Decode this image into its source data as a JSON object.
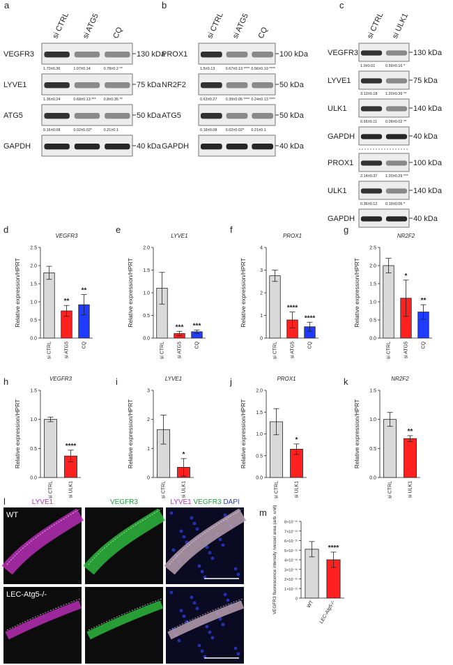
{
  "blots": [
    {
      "panel": "a",
      "lanes": [
        "si CTRL",
        "si ATG5",
        "CQ"
      ],
      "rows": [
        {
          "protein": "VEGFR3",
          "marker": "130 kDa",
          "quant": [
            "1.70±0.36",
            "1.07±0.14",
            "0.78±0.2 **"
          ]
        },
        {
          "protein": "LYVE1",
          "marker": "75 kDa",
          "quant": [
            "1.36±0.24",
            "0.68±0.13 ***",
            "0.8±0.35 **"
          ]
        },
        {
          "protein": "ATG5",
          "marker": "50 kDa",
          "quant": [
            "0.16±0.08",
            "0.02±0.02*",
            "0.21±0.1"
          ]
        },
        {
          "protein": "GAPDH",
          "marker": "40 kDa"
        }
      ]
    },
    {
      "panel": "b",
      "lanes": [
        "si CTRL",
        "si ATG5",
        "CQ"
      ],
      "rows": [
        {
          "protein": "PROX1",
          "marker": "100 kDa",
          "quant": [
            "1.5±0.13",
            "0.67±0.13 ****",
            "0.56±0.19 ****"
          ]
        },
        {
          "protein": "NR2F2",
          "marker": "50 kDa",
          "quant": [
            "0.63±0.27",
            "0.39±0.05 ****",
            "0.24±0.13 ****"
          ]
        },
        {
          "protein": "ATG5",
          "marker": "50 kDa",
          "quant": [
            "0.18±0.08",
            "0.02±0.02*",
            "0.21±0.1"
          ]
        },
        {
          "protein": "GAPDH",
          "marker": "40 kDa"
        }
      ]
    },
    {
      "panel": "c",
      "lanes": [
        "si CTRL",
        "si ULK1"
      ],
      "rows": [
        {
          "protein": "VEGFR3",
          "marker": "130 kDa",
          "quant": [
            "1.0±0.01",
            "0.59±0.16 *"
          ]
        },
        {
          "protein": "LYVE1",
          "marker": "75 kDa",
          "quant": [
            "3.13±0.18",
            "1.20±0.39 **"
          ]
        },
        {
          "protein": "ULK1",
          "marker": "140 kDa",
          "quant": [
            "0.65±0.11",
            "0.09±0.02 **"
          ]
        },
        {
          "protein": "GAPDH",
          "marker": "40 kDa"
        },
        {
          "protein": "PROX1",
          "marker": "100 kDa",
          "quant": [
            "2.14±0.37",
            "1.20±0.29 ***"
          ]
        },
        {
          "protein": "ULK1",
          "marker": "140 kDa",
          "quant": [
            "0.36±0.12",
            "0.19±0.06 *"
          ]
        },
        {
          "protein": "GAPDH",
          "marker": "40 kDa"
        }
      ]
    }
  ],
  "chart_data": [
    {
      "type": "bar",
      "panel": "d",
      "title": "VEGFR3",
      "y_label": "Relative expression/HPRT",
      "categories": [
        "si CTRL",
        "si ATG5",
        "CQ"
      ],
      "values": [
        1.8,
        0.75,
        0.92
      ],
      "errors": [
        0.18,
        0.15,
        0.28
      ],
      "colors": [
        "#d9d9d9",
        "#ff2020",
        "#1f3bff"
      ],
      "annotations": [
        null,
        "**",
        "**"
      ],
      "ylim": [
        0,
        2.5
      ],
      "yticks": [
        {
          "value": 0,
          "label": "0.0"
        },
        0.5,
        {
          "value": 1,
          "label": "1.0"
        },
        1.5,
        {
          "value": 2,
          "label": "2.0"
        },
        2.5
      ]
    },
    {
      "type": "bar",
      "panel": "e",
      "title": "LYVE1",
      "y_label": "Relative expression/HPRT",
      "categories": [
        "si CTRL",
        "si ATG5",
        "CQ"
      ],
      "values": [
        1.1,
        0.1,
        0.14
      ],
      "errors": [
        0.35,
        0.05,
        0.04
      ],
      "colors": [
        "#d9d9d9",
        "#ff2020",
        "#1f3bff"
      ],
      "annotations": [
        null,
        "***",
        "***"
      ],
      "ylim": [
        0,
        2
      ],
      "yticks": [
        {
          "value": 0,
          "label": "0.0"
        },
        0.5,
        {
          "value": 1,
          "label": "1.0"
        },
        1.5,
        {
          "value": 2,
          "label": "2.0"
        }
      ]
    },
    {
      "type": "bar",
      "panel": "f",
      "title": "PROX1",
      "y_label": "Relative expression/HPRT",
      "categories": [
        "si CTRL",
        "si ATG5",
        "CQ"
      ],
      "values": [
        2.75,
        0.8,
        0.5
      ],
      "errors": [
        0.25,
        0.35,
        0.2
      ],
      "colors": [
        "#d9d9d9",
        "#ff2020",
        "#1f3bff"
      ],
      "annotations": [
        null,
        "****",
        "****"
      ],
      "ylim": [
        0,
        4
      ],
      "yticks": [
        0,
        1,
        2,
        3,
        4
      ]
    },
    {
      "type": "bar",
      "panel": "g",
      "title": "NR2F2",
      "y_label": "Relative expression/HPRT",
      "categories": [
        "si CTRL",
        "si ATG5",
        "CQ"
      ],
      "values": [
        2.0,
        1.1,
        0.72
      ],
      "errors": [
        0.2,
        0.5,
        0.2
      ],
      "colors": [
        "#d9d9d9",
        "#ff2020",
        "#1f3bff"
      ],
      "annotations": [
        null,
        "*",
        "**"
      ],
      "ylim": [
        0,
        2.5
      ],
      "yticks": [
        {
          "value": 0,
          "label": "0.0"
        },
        0.5,
        {
          "value": 1,
          "label": "1.0"
        },
        1.5,
        {
          "value": 2,
          "label": "2.0"
        },
        2.5
      ]
    },
    {
      "type": "bar",
      "panel": "h",
      "title": "VEGFR3",
      "y_label": "Relative expression/HPRT",
      "categories": [
        "si CTRL",
        "si ULK1"
      ],
      "values": [
        1.0,
        0.37
      ],
      "errors": [
        0.04,
        0.1
      ],
      "colors": [
        "#d9d9d9",
        "#ff2020"
      ],
      "annotations": [
        null,
        "****"
      ],
      "ylim": [
        0,
        1.5
      ],
      "yticks": [
        {
          "value": 0,
          "label": "0.0"
        },
        0.5,
        {
          "value": 1,
          "label": "1.0"
        },
        1.5
      ]
    },
    {
      "type": "bar",
      "panel": "i",
      "title": "LYVE1",
      "y_label": "Relative expression/HPRT",
      "categories": [
        "si CTRL",
        "si ULK1"
      ],
      "values": [
        1.65,
        0.35
      ],
      "errors": [
        0.5,
        0.3
      ],
      "colors": [
        "#d9d9d9",
        "#ff2020"
      ],
      "annotations": [
        null,
        "*"
      ],
      "ylim": [
        0,
        3
      ],
      "yticks": [
        0,
        1,
        2,
        3
      ]
    },
    {
      "type": "bar",
      "panel": "j",
      "title": "PROX1",
      "y_label": "Relative expression/HPRT",
      "categories": [
        "si CTRL",
        "si ULK1"
      ],
      "values": [
        1.28,
        0.65
      ],
      "errors": [
        0.3,
        0.12
      ],
      "colors": [
        "#d9d9d9",
        "#ff2020"
      ],
      "annotations": [
        null,
        "*"
      ],
      "ylim": [
        0,
        2
      ],
      "yticks": [
        {
          "value": 0,
          "label": "0.0"
        },
        0.5,
        {
          "value": 1,
          "label": "1.0"
        },
        1.5,
        {
          "value": 2,
          "label": "2.0"
        }
      ]
    },
    {
      "type": "bar",
      "panel": "k",
      "title": "NR2F2",
      "y_label": "Relative expression/HPRT",
      "categories": [
        "si CTRL",
        "si ULK1"
      ],
      "values": [
        1.0,
        0.67
      ],
      "errors": [
        0.12,
        0.05
      ],
      "colors": [
        "#d9d9d9",
        "#ff2020"
      ],
      "annotations": [
        null,
        "**"
      ],
      "ylim": [
        0,
        1.5
      ],
      "yticks": [
        {
          "value": 0,
          "label": "0.0"
        },
        0.5,
        {
          "value": 1,
          "label": "1.0"
        },
        1.5
      ]
    },
    {
      "type": "bar",
      "panel": "m",
      "y_label": "VEGFR3 fluorescence intensity /vessel area (arb. unit)",
      "categories": [
        "WT",
        "LEC-Atg5-/-"
      ],
      "values": [
        5.1e-11,
        4e-11
      ],
      "errors": [
        8e-12,
        8e-12
      ],
      "colors": [
        "#d9d9d9",
        "#ff2020"
      ],
      "annotations": [
        null,
        "****"
      ],
      "ylim": [
        0,
        8e-11
      ],
      "yticks": [
        0,
        {
          "value": 1e-11,
          "label": "1×10⁻¹¹"
        },
        {
          "value": 2e-11,
          "label": "2×10⁻¹¹"
        },
        {
          "value": 3e-11,
          "label": "3×10⁻¹¹"
        },
        {
          "value": 4e-11,
          "label": "4×10⁻¹¹"
        },
        {
          "value": 5e-11,
          "label": "5×10⁻¹¹"
        },
        {
          "value": 6e-11,
          "label": "6×10⁻¹¹"
        },
        {
          "value": 7e-11,
          "label": "7×10⁻¹¹"
        },
        {
          "value": 8e-11,
          "label": "8×10⁻¹¹"
        }
      ]
    }
  ],
  "microscopy": {
    "panel": "l",
    "columns": [
      {
        "text": "LYVE1",
        "color": "#c030c0"
      },
      {
        "text": "VEGFR3",
        "color": "#20a040"
      }
    ],
    "merge": [
      {
        "text": "LYVE1",
        "color": "#c030c0"
      },
      {
        "text": "VEGFR3",
        "color": "#20a040"
      },
      {
        "text": "DAPI",
        "color": "#2040c0"
      }
    ],
    "rows": [
      "WT",
      "LEC-Atg5-/-"
    ]
  }
}
